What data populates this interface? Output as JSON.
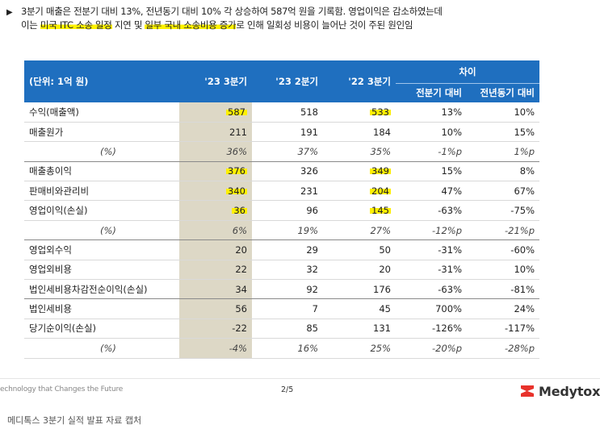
{
  "summary": {
    "bullet": "▶",
    "line1_a": "3분기 매출은 전분기 대비 13%, 전년동기 대비 10% 각 상승하여 587억 원을 기록함. 영업이익은 감소하였는데",
    "line2_a": "이는 ",
    "line2_hl1": "미국 ITC 소송 일정",
    "line2_b": " 지연 및 ",
    "line2_hl2": "일부 국내 소송비용 증가",
    "line2_c": "로 인해 일회성 비용이 늘어난 것이 주된 원인임"
  },
  "table": {
    "unit_label": "(단위: 1억 원)",
    "col_q3_23": "'23 3분기",
    "col_q2_23": "'23 2분기",
    "col_q3_22": "'22 3분기",
    "diff_label": "차이",
    "col_qoq": "전분기 대비",
    "col_yoy": "전년동기 대비",
    "rows": [
      {
        "label": "수익(매출액)",
        "v1": "587",
        "v2": "518",
        "v3": "533",
        "d1": "13%",
        "d2": "10%"
      },
      {
        "label": "매출원가",
        "v1": "211",
        "v2": "191",
        "v3": "184",
        "d1": "10%",
        "d2": "15%"
      },
      {
        "label": "(%)",
        "v1": "36%",
        "v2": "37%",
        "v3": "35%",
        "d1": "-1%p",
        "d2": "1%p"
      },
      {
        "label": "매출총이익",
        "v1": "376",
        "v2": "326",
        "v3": "349",
        "d1": "15%",
        "d2": "8%"
      },
      {
        "label": "판매비와관리비",
        "v1": "340",
        "v2": "231",
        "v3": "204",
        "d1": "47%",
        "d2": "67%"
      },
      {
        "label": "영업이익(손실)",
        "v1": "36",
        "v2": "96",
        "v3": "145",
        "d1": "-63%",
        "d2": "-75%"
      },
      {
        "label": "(%)",
        "v1": "6%",
        "v2": "19%",
        "v3": "27%",
        "d1": "-12%p",
        "d2": "-21%p"
      },
      {
        "label": "영업외수익",
        "v1": "20",
        "v2": "29",
        "v3": "50",
        "d1": "-31%",
        "d2": "-60%"
      },
      {
        "label": "영업외비용",
        "v1": "22",
        "v2": "32",
        "v3": "20",
        "d1": "-31%",
        "d2": "10%"
      },
      {
        "label": "법인세비용차감전순이익(손실)",
        "v1": "34",
        "v2": "92",
        "v3": "176",
        "d1": "-63%",
        "d2": "-81%"
      },
      {
        "label": "법인세비용",
        "v1": "56",
        "v2": "7",
        "v3": "45",
        "d1": "700%",
        "d2": "24%"
      },
      {
        "label": "당기순이익(손실)",
        "v1": "-22",
        "v2": "85",
        "v3": "131",
        "d1": "-126%",
        "d2": "-117%"
      },
      {
        "label": "(%)",
        "v1": "-4%",
        "v2": "16%",
        "v3": "25%",
        "d1": "-20%p",
        "d2": "-28%p"
      }
    ]
  },
  "footer": {
    "tagline": "echnology that Changes the Future",
    "page": "2/5",
    "brand": "Medytox"
  },
  "caption": "메디톡스 3분기 실적 발표 자료 캡처",
  "colors": {
    "header_bg": "#1f6fbf",
    "highlight_col": "#ddd8c6",
    "marker": "#fff000",
    "logo_red": "#e8322b"
  }
}
